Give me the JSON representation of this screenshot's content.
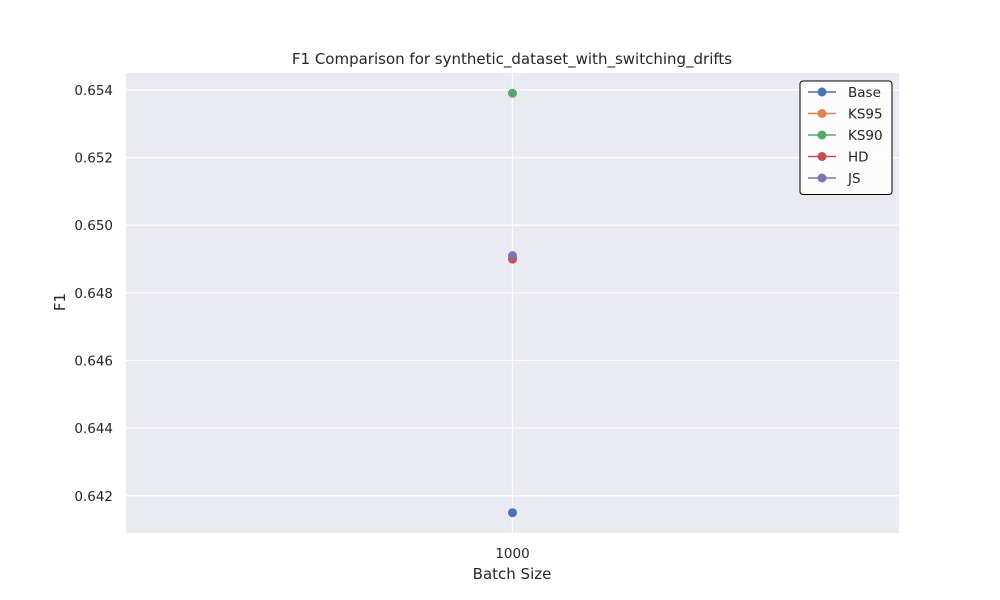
{
  "chart_data": {
    "type": "line",
    "title": "F1 Comparison for synthetic_dataset_with_switching_drifts",
    "xlabel": "Batch Size",
    "ylabel": "F1",
    "x_categories": [
      "1000"
    ],
    "ylim": [
      0.6409,
      0.6545
    ],
    "yticks": [
      0.642,
      0.644,
      0.646,
      0.648,
      0.65,
      0.652,
      0.654
    ],
    "ytick_labels": [
      "0.642",
      "0.644",
      "0.646",
      "0.648",
      "0.650",
      "0.652",
      "0.654"
    ],
    "grid": true,
    "legend_position": "top-right",
    "series": [
      {
        "name": "Base",
        "color": "#4c72b0",
        "values": [
          0.6415
        ]
      },
      {
        "name": "KS95",
        "color": "#dd8452",
        "values": [
          0.649
        ]
      },
      {
        "name": "KS90",
        "color": "#55a868",
        "values": [
          0.6539
        ]
      },
      {
        "name": "HD",
        "color": "#c44e52",
        "values": [
          0.649
        ]
      },
      {
        "name": "JS",
        "color": "#8172b3",
        "values": [
          0.6491
        ]
      }
    ],
    "colors": {
      "plot_background": "#eaeaf2",
      "grid": "#ffffff",
      "legend_border": "#000000"
    }
  }
}
